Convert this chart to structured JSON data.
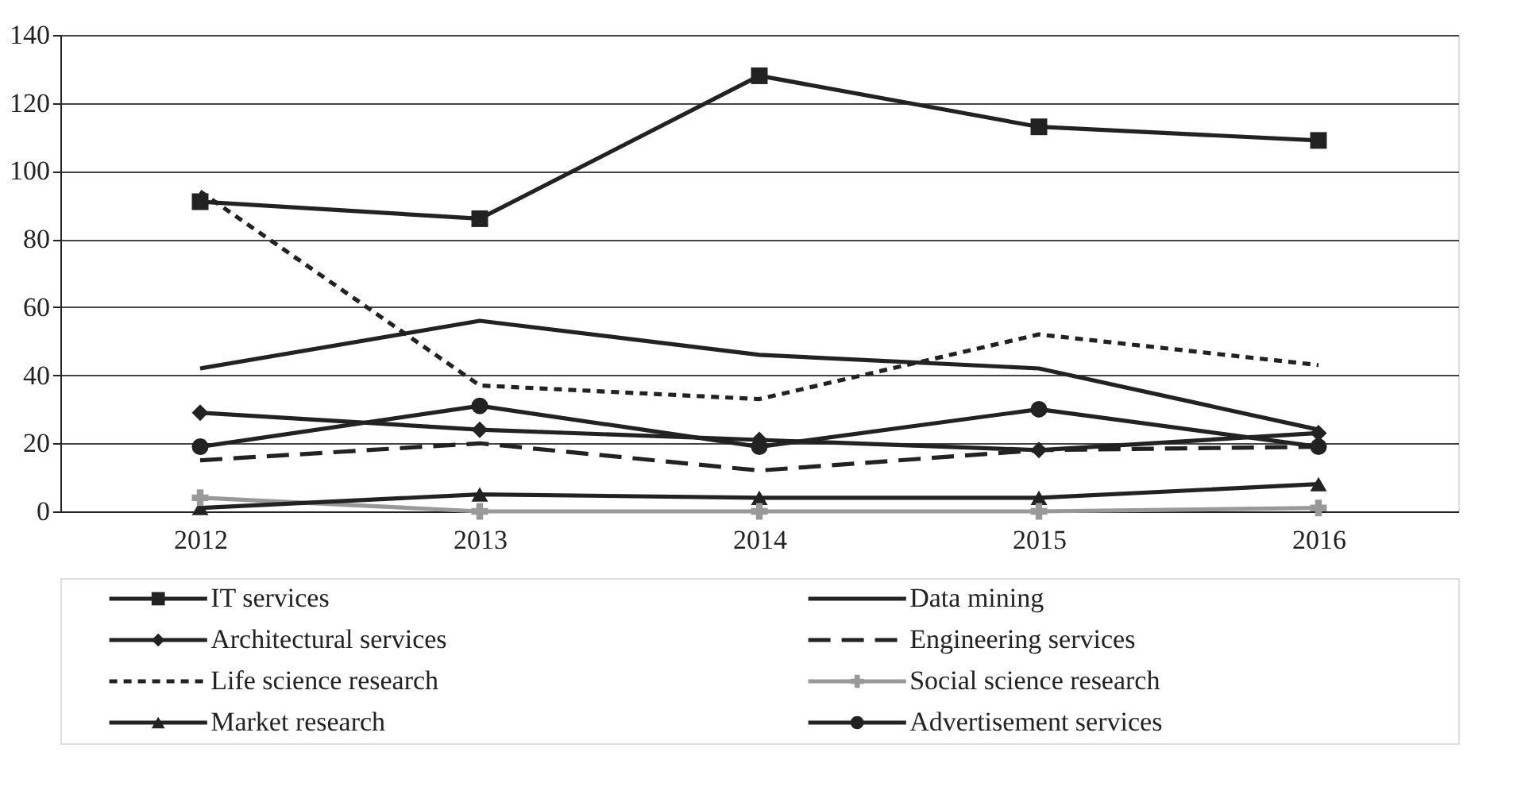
{
  "chart_data": {
    "type": "line",
    "categories": [
      "2012",
      "2013",
      "2014",
      "2015",
      "2016"
    ],
    "ylim": [
      0,
      140
    ],
    "yticks": [
      0,
      20,
      40,
      60,
      80,
      100,
      120,
      140
    ],
    "grid": "y",
    "legend": "bottom",
    "series": [
      {
        "name": "IT services",
        "color": "#222222",
        "marker": "square",
        "line_style": "solid",
        "values": [
          91,
          86,
          128,
          113,
          109
        ]
      },
      {
        "name": "Data mining",
        "color": "#222222",
        "marker": "none",
        "line_style": "solid",
        "values": [
          42,
          56,
          46,
          42,
          24
        ]
      },
      {
        "name": "Architectural services",
        "color": "#222222",
        "marker": "diamond",
        "line_style": "solid",
        "values": [
          29,
          24,
          21,
          18,
          23
        ]
      },
      {
        "name": "Engineering services",
        "color": "#222222",
        "marker": "none",
        "line_style": "dashed",
        "values": [
          15,
          20,
          12,
          18,
          19
        ]
      },
      {
        "name": "Life science research",
        "color": "#222222",
        "marker": "none",
        "line_style": "dotted",
        "values": [
          94,
          37,
          33,
          52,
          43
        ]
      },
      {
        "name": "Social science research",
        "color": "#999999",
        "marker": "cross",
        "line_style": "solid",
        "values": [
          4,
          0,
          0,
          0,
          1
        ]
      },
      {
        "name": "Market research",
        "color": "#222222",
        "marker": "triangle",
        "line_style": "solid",
        "values": [
          1,
          5,
          4,
          4,
          8
        ]
      },
      {
        "name": "Advertisement services",
        "color": "#222222",
        "marker": "circle",
        "line_style": "solid",
        "values": [
          19,
          31,
          19,
          30,
          19
        ]
      }
    ]
  }
}
